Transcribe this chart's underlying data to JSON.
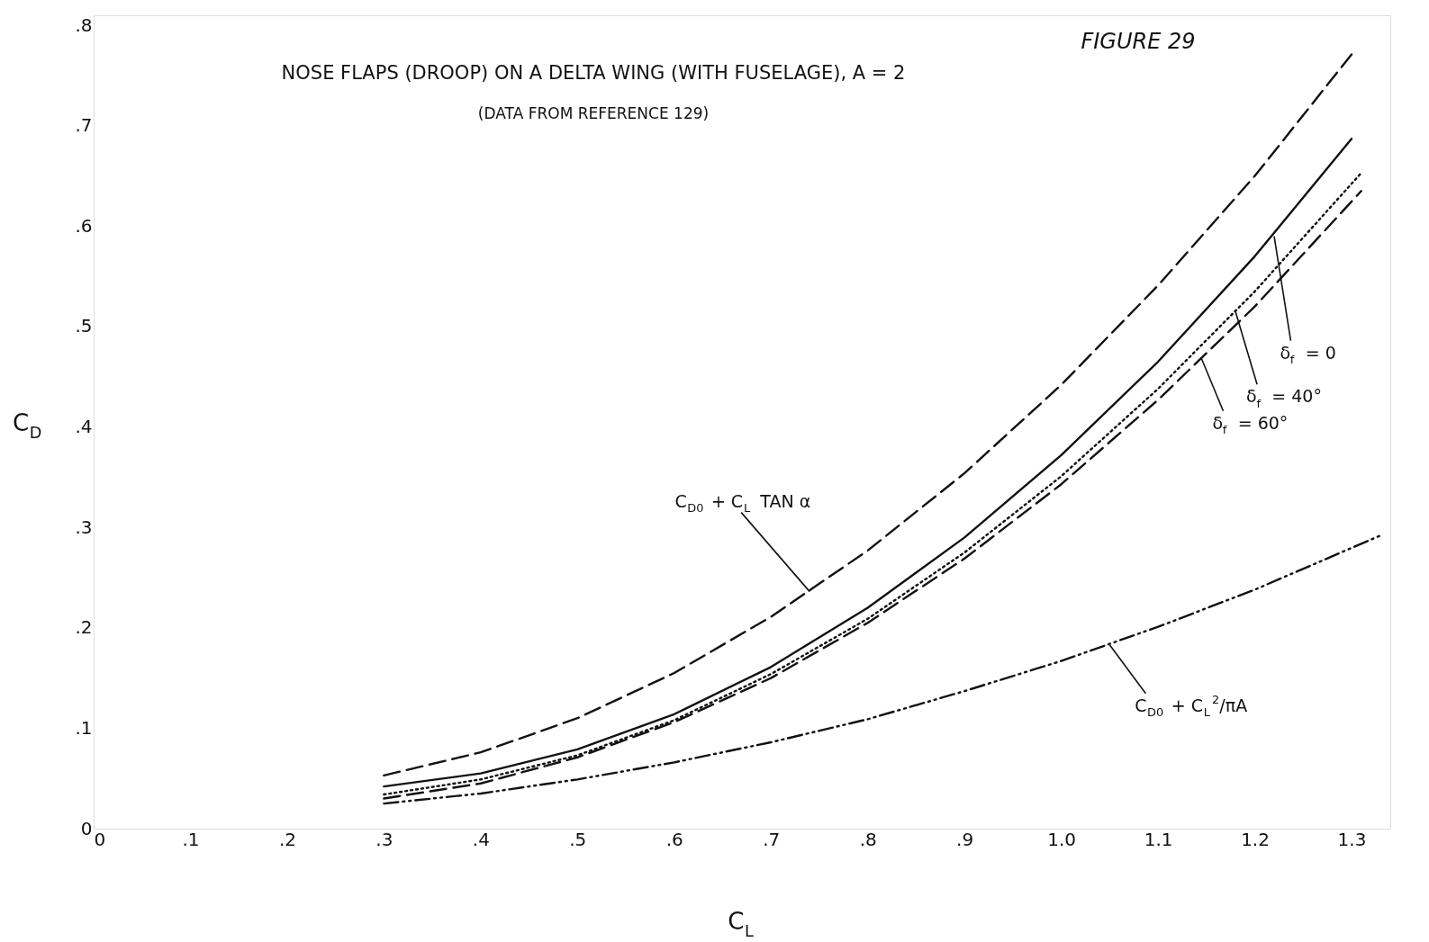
{
  "chart_data": {
    "type": "line",
    "title": "NOSE FLAPS (DROOP) ON A DELTA WING (WITH FUSELAGE), A = 2",
    "subtitle": "(DATA FROM REFERENCE 129)",
    "xlabel": "C$_{L}$",
    "ylabel": "C$_{D}$",
    "xlim": [
      0,
      1.34
    ],
    "ylim": [
      0,
      0.81
    ],
    "xticks": [
      0,
      {
        "value": 0.1,
        "label": ".1"
      },
      {
        "value": 0.2,
        "label": ".2"
      },
      {
        "value": 0.3,
        "label": ".3"
      },
      {
        "value": 0.4,
        "label": ".4"
      },
      {
        "value": 0.5,
        "label": ".5"
      },
      {
        "value": 0.6,
        "label": ".6"
      },
      {
        "value": 0.7,
        "label": ".7"
      },
      {
        "value": 0.8,
        "label": ".8"
      },
      {
        "value": 0.9,
        "label": ".9"
      },
      {
        "value": 1.0,
        "label": "1.0"
      },
      {
        "value": 1.1,
        "label": "1.1"
      },
      {
        "value": 1.2,
        "label": "1.2"
      },
      {
        "value": 1.3,
        "label": "1.3"
      }
    ],
    "yticks": [
      0,
      {
        "value": 0.1,
        "label": ".1"
      },
      {
        "value": 0.2,
        "label": ".2"
      },
      {
        "value": 0.3,
        "label": ".3"
      },
      {
        "value": 0.4,
        "label": ".4"
      },
      {
        "value": 0.5,
        "label": ".5"
      },
      {
        "value": 0.6,
        "label": ".6"
      },
      {
        "value": 0.7,
        "label": ".7"
      },
      {
        "value": 0.8,
        "label": ".8"
      }
    ],
    "grid": false,
    "marker": "none",
    "series": [
      {
        "color": "#111111",
        "line_style": "dashed",
        "x": [
          0.3,
          0.4,
          0.5,
          0.6,
          0.7,
          0.8,
          0.9,
          1.0,
          1.1,
          1.2,
          1.3
        ],
        "values": [
          0.053,
          0.076,
          0.11,
          0.155,
          0.211,
          0.277,
          0.354,
          0.442,
          0.541,
          0.65,
          0.771
        ]
      },
      {
        "color": "#111111",
        "line_style": "solid",
        "x": [
          0.3,
          0.4,
          0.5,
          0.6,
          0.7,
          0.8,
          0.9,
          1.0,
          1.1,
          1.2,
          1.3
        ],
        "values": [
          0.042,
          0.055,
          0.079,
          0.114,
          0.161,
          0.22,
          0.29,
          0.372,
          0.465,
          0.57,
          0.687
        ]
      },
      {
        "color": "#111111",
        "line_style": "dotted",
        "x": [
          0.3,
          0.4,
          0.5,
          0.6,
          0.7,
          0.8,
          0.9,
          1.0,
          1.1,
          1.2,
          1.31
        ],
        "values": [
          0.034,
          0.049,
          0.073,
          0.108,
          0.154,
          0.209,
          0.275,
          0.351,
          0.438,
          0.535,
          0.653
        ]
      },
      {
        "color": "#111111",
        "line_style": "dashed",
        "x": [
          0.3,
          0.4,
          0.5,
          0.6,
          0.7,
          0.8,
          0.9,
          1.0,
          1.1,
          1.2,
          1.31
        ],
        "values": [
          0.03,
          0.045,
          0.071,
          0.106,
          0.15,
          0.205,
          0.269,
          0.343,
          0.427,
          0.52,
          0.635
        ]
      },
      {
        "color": "#111111",
        "line_style": "dashdot",
        "x": [
          0.3,
          0.4,
          0.5,
          0.6,
          0.7,
          0.8,
          0.9,
          1.0,
          1.1,
          1.2,
          1.33
        ],
        "values": [
          0.025,
          0.035,
          0.049,
          0.066,
          0.086,
          0.109,
          0.137,
          0.167,
          0.201,
          0.238,
          0.292
        ]
      }
    ],
    "annotations": [
      "FIGURE 29",
      {
        "text": "C$_{D0}$ + C$_{L}$ TAN α",
        "x": 0.74,
        "y": 0.236
      },
      {
        "text": "δ$_{f}$ = 0",
        "x": 1.22,
        "y": 0.59
      },
      {
        "text": "δ$_{f}$ = 40°",
        "x": 1.18,
        "y": 0.515
      },
      {
        "text": "δ$_{f}$ = 60°",
        "x": 1.145,
        "y": 0.468
      },
      {
        "text": "C$_{D0}$ + C$_{L}$$^{2}$/πA",
        "x": 1.05,
        "y": 0.183
      }
    ]
  }
}
